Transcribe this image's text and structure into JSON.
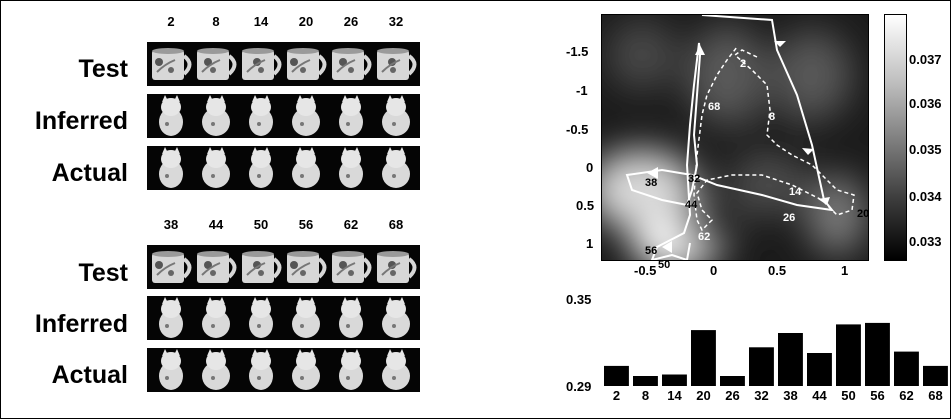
{
  "rows": {
    "test": "Test",
    "inferred": "Inferred",
    "actual": "Actual"
  },
  "frames_top": [
    "2",
    "8",
    "14",
    "20",
    "26",
    "32"
  ],
  "frames_bottom": [
    "38",
    "44",
    "50",
    "56",
    "62",
    "68"
  ],
  "heatmap": {
    "y_ticks": [
      "-1.5",
      "-1",
      "-0.5",
      "0",
      "0.5",
      "1"
    ],
    "x_ticks": [
      "-0.5",
      "0",
      "0.5",
      "1"
    ],
    "path_labels": [
      "2",
      "8",
      "14",
      "20",
      "26",
      "32",
      "38",
      "44",
      "50",
      "56",
      "62",
      "68"
    ],
    "colorbar_ticks": [
      "0.037",
      "0.036",
      "0.035",
      "0.034",
      "0.033"
    ]
  },
  "chart_data": {
    "type": "bar",
    "categories": [
      "2",
      "8",
      "14",
      "20",
      "26",
      "32",
      "38",
      "44",
      "50",
      "56",
      "62",
      "68"
    ],
    "values": [
      0.304,
      0.297,
      0.298,
      0.329,
      0.297,
      0.317,
      0.327,
      0.313,
      0.333,
      0.334,
      0.314,
      0.304
    ],
    "ylim": [
      0.29,
      0.35
    ],
    "y_ticks": [
      "0.35",
      "0.29"
    ]
  }
}
